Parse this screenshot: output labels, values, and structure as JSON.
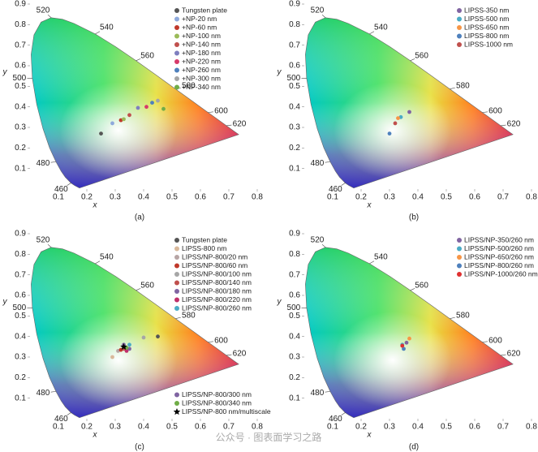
{
  "chart_data": [
    {
      "type": "scatter",
      "caption": "(a)",
      "xlabel": "x",
      "ylabel": "y",
      "xlim": [
        0,
        0.8
      ],
      "ylim": [
        0,
        0.9
      ],
      "xticks": [
        0.1,
        0.2,
        0.3,
        0.4,
        0.5,
        0.6,
        0.7,
        0.8
      ],
      "yticks": [
        0.1,
        0.2,
        0.3,
        0.4,
        0.5,
        0.6,
        0.7,
        0.8,
        0.9
      ],
      "locus_labels": [
        "460",
        "480",
        "500",
        "520",
        "540",
        "560",
        "580",
        "600",
        "620"
      ],
      "legend": "upper right",
      "series": [
        {
          "name": "Tungsten plate",
          "color": "#555555",
          "x": [
            0.25
          ],
          "values": [
            0.27
          ]
        },
        {
          "name": "+NP-20 nm",
          "color": "#8faadc",
          "x": [
            0.29
          ],
          "values": [
            0.32
          ]
        },
        {
          "name": "+NP-60 nm",
          "color": "#c0392b",
          "x": [
            0.32
          ],
          "values": [
            0.335
          ]
        },
        {
          "name": "+NP-100 nm",
          "color": "#9bbb59",
          "x": [
            0.33
          ],
          "values": [
            0.34
          ]
        },
        {
          "name": "+NP-140 nm",
          "color": "#c0504d",
          "x": [
            0.35
          ],
          "values": [
            0.36
          ]
        },
        {
          "name": "+NP-180 nm",
          "color": "#7f7fbf",
          "x": [
            0.38
          ],
          "values": [
            0.395
          ]
        },
        {
          "name": "+NP-220 nm",
          "color": "#d63a6a",
          "x": [
            0.41
          ],
          "values": [
            0.4
          ]
        },
        {
          "name": "+NP-260 nm",
          "color": "#4f81bd",
          "x": [
            0.43
          ],
          "values": [
            0.42
          ]
        },
        {
          "name": "+NP-300 nm",
          "color": "#a5a5a5",
          "x": [
            0.45
          ],
          "values": [
            0.43
          ]
        },
        {
          "name": "+NP-340 nm",
          "color": "#70ad47",
          "x": [
            0.47
          ],
          "values": [
            0.39
          ]
        }
      ]
    },
    {
      "type": "scatter",
      "caption": "(b)",
      "xlabel": "x",
      "ylabel": "y",
      "xlim": [
        0,
        0.8
      ],
      "ylim": [
        0,
        0.9
      ],
      "xticks": [
        0.1,
        0.2,
        0.3,
        0.4,
        0.5,
        0.6,
        0.7,
        0.8
      ],
      "yticks": [
        0.1,
        0.2,
        0.3,
        0.4,
        0.5,
        0.6,
        0.7,
        0.8,
        0.9
      ],
      "locus_labels": [
        "460",
        "480",
        "500",
        "520",
        "540",
        "560",
        "580",
        "600",
        "620"
      ],
      "legend": "upper right",
      "series": [
        {
          "name": "LIPSS-350 nm",
          "color": "#8064a2",
          "x": [
            0.37
          ],
          "values": [
            0.375
          ]
        },
        {
          "name": "LIPSS-500 nm",
          "color": "#4bacc6",
          "x": [
            0.34
          ],
          "values": [
            0.35
          ]
        },
        {
          "name": "LIPSS-650 nm",
          "color": "#f79646",
          "x": [
            0.33
          ],
          "values": [
            0.345
          ]
        },
        {
          "name": "LIPSS-800 nm",
          "color": "#4f81bd",
          "x": [
            0.3
          ],
          "values": [
            0.27
          ]
        },
        {
          "name": "LIPSS-1000 nm",
          "color": "#c0504d",
          "x": [
            0.32
          ],
          "values": [
            0.32
          ]
        }
      ]
    },
    {
      "type": "scatter",
      "caption": "(c)",
      "xlabel": "x",
      "ylabel": "y",
      "xlim": [
        0,
        0.8
      ],
      "ylim": [
        0,
        0.9
      ],
      "xticks": [
        0.1,
        0.2,
        0.3,
        0.4,
        0.5,
        0.6,
        0.7,
        0.8
      ],
      "yticks": [
        0.1,
        0.2,
        0.3,
        0.4,
        0.5,
        0.6,
        0.7,
        0.8,
        0.9
      ],
      "locus_labels": [
        "460",
        "480",
        "500",
        "520",
        "540",
        "560",
        "580",
        "600",
        "620"
      ],
      "legend": "upper right",
      "series": [
        {
          "name": "Tungsten plate",
          "color": "#555555",
          "x": [
            0.45
          ],
          "values": [
            0.4
          ]
        },
        {
          "name": "LIPSS-800 nm",
          "color": "#d9b99b",
          "x": [
            0.29
          ],
          "values": [
            0.3
          ]
        },
        {
          "name": "LIPSS/NP-800/20 nm",
          "color": "#b7a5a5",
          "x": [
            0.31
          ],
          "values": [
            0.33
          ]
        },
        {
          "name": "LIPSS/NP-800/60 nm",
          "color": "#c0392b",
          "x": [
            0.32
          ],
          "values": [
            0.335
          ]
        },
        {
          "name": "LIPSS/NP-800/100 nm",
          "color": "#a6a6a6",
          "x": [
            0.4
          ],
          "values": [
            0.395
          ]
        },
        {
          "name": "LIPSS/NP-800/140 nm",
          "color": "#c0504d",
          "x": [
            0.33
          ],
          "values": [
            0.34
          ]
        },
        {
          "name": "LIPSS/NP-800/180 nm",
          "color": "#8064a2",
          "x": [
            0.33
          ],
          "values": [
            0.36
          ]
        },
        {
          "name": "LIPSS/NP-800/220 nm",
          "color": "#c0306a",
          "x": [
            0.34
          ],
          "values": [
            0.33
          ]
        },
        {
          "name": "LIPSS/NP-800/260 nm",
          "color": "#4bacc6",
          "x": [
            0.35
          ],
          "values": [
            0.36
          ]
        },
        {
          "name": "LIPSS/NP-800/300 nm",
          "color": "#8064a2",
          "x": [
            0.35
          ],
          "values": [
            0.34
          ],
          "legend_loc": "lower right"
        },
        {
          "name": "LIPSS/NP-800/340 nm",
          "color": "#70ad47",
          "x": [
            0.34
          ],
          "values": [
            0.345
          ],
          "legend_loc": "lower right"
        },
        {
          "name": "LIPSS/NP-800 nm/multiscale",
          "color": "#000000",
          "marker": "star",
          "x": [
            0.33
          ],
          "values": [
            0.35
          ],
          "legend_loc": "lower right"
        }
      ]
    },
    {
      "type": "scatter",
      "caption": "(d)",
      "xlabel": "x",
      "ylabel": "y",
      "xlim": [
        0,
        0.8
      ],
      "ylim": [
        0,
        0.9
      ],
      "xticks": [
        0.1,
        0.2,
        0.3,
        0.4,
        0.5,
        0.6,
        0.7,
        0.8
      ],
      "yticks": [
        0.1,
        0.2,
        0.3,
        0.4,
        0.5,
        0.6,
        0.7,
        0.8,
        0.9
      ],
      "locus_labels": [
        "460",
        "480",
        "500",
        "520",
        "540",
        "560",
        "580",
        "600",
        "620"
      ],
      "legend": "upper right",
      "series": [
        {
          "name": "LIPSS/NP-350/260 nm",
          "color": "#8064a2",
          "x": [
            0.36
          ],
          "values": [
            0.37
          ]
        },
        {
          "name": "LIPSS/NP-500/260 nm",
          "color": "#4bacc6",
          "x": [
            0.345
          ],
          "values": [
            0.36
          ]
        },
        {
          "name": "LIPSS/NP-650/260 nm",
          "color": "#f79646",
          "x": [
            0.37
          ],
          "values": [
            0.39
          ]
        },
        {
          "name": "LIPSS/NP-800/260 nm",
          "color": "#4f81bd",
          "x": [
            0.35
          ],
          "values": [
            0.34
          ]
        },
        {
          "name": "LIPSS/NP-1000/260 nm",
          "color": "#e03030",
          "x": [
            0.345
          ],
          "values": [
            0.355
          ]
        }
      ]
    }
  ],
  "watermark": "公众号 · 图表面学习之路"
}
